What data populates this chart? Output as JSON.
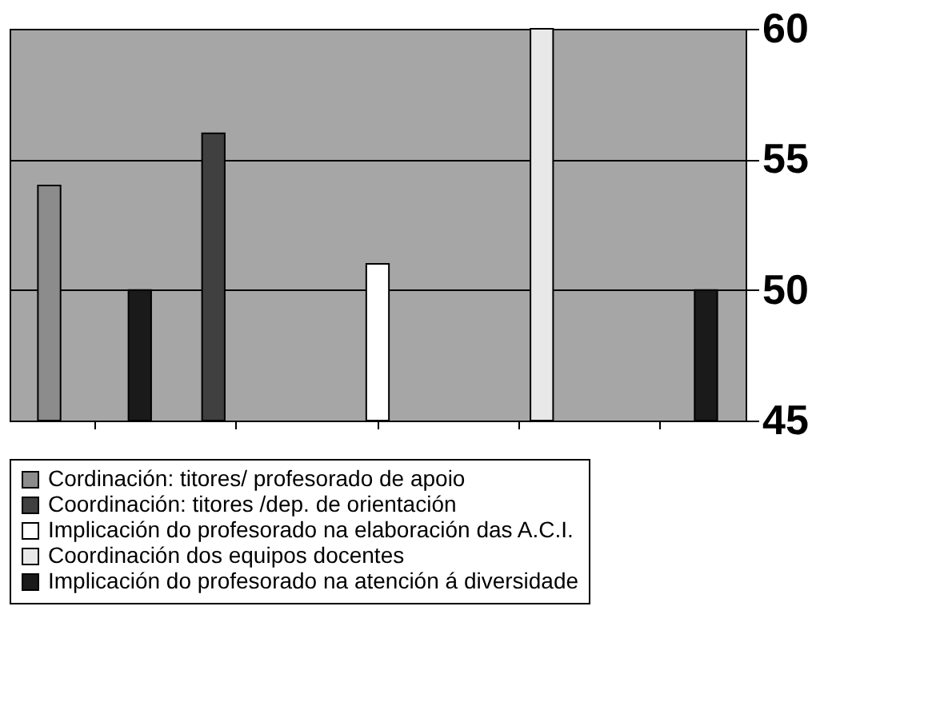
{
  "chart_data": {
    "type": "bar",
    "categories": [
      null,
      null,
      null,
      null,
      null
    ],
    "series": [
      {
        "name": "Cordinación: titores/ profesorado de apoio",
        "color": "#8c8c8c",
        "values": [
          54,
          null,
          null,
          null,
          null
        ]
      },
      {
        "name": "Coordinación: titores /dep. de orientación",
        "color": "#404040",
        "values": [
          null,
          56,
          null,
          null,
          null
        ]
      },
      {
        "name": "Implicación do profesorado na elaboración das A.C.I.",
        "color": "#ffffff",
        "values": [
          null,
          null,
          51,
          null,
          null
        ]
      },
      {
        "name": "Coordinación dos equipos docentes",
        "color": "#e8e8e8",
        "values": [
          null,
          null,
          null,
          60,
          null
        ]
      },
      {
        "name": "Implicación do profesorado na atención á diversidade",
        "color": "#1a1a1a",
        "values": [
          50,
          null,
          null,
          null,
          50
        ]
      }
    ],
    "ylim": [
      45,
      60
    ],
    "yticks": [
      45,
      50,
      55,
      60
    ],
    "grid": "y",
    "legend": "bottom",
    "tick_labels": "y"
  }
}
